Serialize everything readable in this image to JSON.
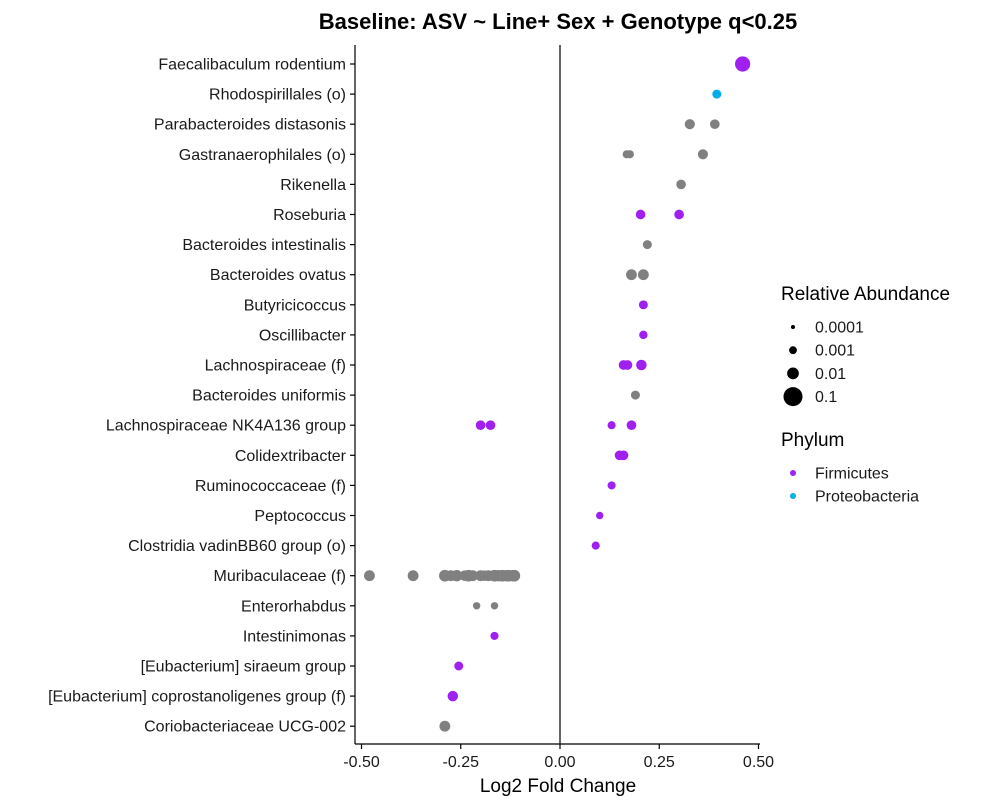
{
  "chart_data": {
    "type": "scatter",
    "title": "Baseline: ASV ~ Line+ Sex + Genotype q<0.25",
    "xlabel": "Log2 Fold Change",
    "ylabel": "",
    "xlim": [
      -0.52,
      0.52
    ],
    "xticks": [
      -0.5,
      -0.25,
      0.0,
      0.25,
      0.5
    ],
    "xtick_labels": [
      "-0.50",
      "-0.25",
      "0.00",
      "0.25",
      "0.50"
    ],
    "reference_line_x": 0,
    "categories": [
      "Faecalibaculum rodentium",
      "Rhodospirillales (o)",
      "Parabacteroides distasonis",
      "Gastranaerophilales (o)",
      "Rikenella",
      "Roseburia",
      "Bacteroides intestinalis",
      "Bacteroides ovatus",
      "Butyricicoccus",
      "Oscillibacter",
      "Lachnospiraceae (f)",
      "Bacteroides uniformis",
      "Lachnospiraceae NK4A136 group",
      "Colidextribacter",
      "Ruminococcaceae (f)",
      "Peptococcus",
      "Clostridia vadinBB60 group (o)",
      "Muribaculaceae (f)",
      "Enterorhabdus",
      "Intestinimonas",
      "[Eubacterium] siraeum group",
      "[Eubacterium] coprostanoligenes group (f)",
      "Coriobacteriaceae UCG-002"
    ],
    "colors": {
      "Firmicutes": "#a020f0",
      "Proteobacteria": "#00aee8",
      "Other": "#808080"
    },
    "points": [
      {
        "taxon": "Faecalibaculum rodentium",
        "x": 0.46,
        "abundance": 0.08,
        "phylum": "Firmicutes"
      },
      {
        "taxon": "Rhodospirillales (o)",
        "x": 0.395,
        "abundance": 0.002,
        "phylum": "Proteobacteria"
      },
      {
        "taxon": "Parabacteroides distasonis",
        "x": 0.327,
        "abundance": 0.004,
        "phylum": "Other"
      },
      {
        "taxon": "Parabacteroides distasonis",
        "x": 0.39,
        "abundance": 0.003,
        "phylum": "Other"
      },
      {
        "taxon": "Gastranaerophilales (o)",
        "x": 0.168,
        "abundance": 0.0012,
        "phylum": "Other"
      },
      {
        "taxon": "Gastranaerophilales (o)",
        "x": 0.176,
        "abundance": 0.0012,
        "phylum": "Other"
      },
      {
        "taxon": "Gastranaerophilales (o)",
        "x": 0.36,
        "abundance": 0.004,
        "phylum": "Other"
      },
      {
        "taxon": "Rikenella",
        "x": 0.305,
        "abundance": 0.003,
        "phylum": "Other"
      },
      {
        "taxon": "Roseburia",
        "x": 0.203,
        "abundance": 0.003,
        "phylum": "Firmicutes"
      },
      {
        "taxon": "Roseburia",
        "x": 0.3,
        "abundance": 0.003,
        "phylum": "Firmicutes"
      },
      {
        "taxon": "Bacteroides intestinalis",
        "x": 0.22,
        "abundance": 0.002,
        "phylum": "Other"
      },
      {
        "taxon": "Bacteroides ovatus",
        "x": 0.18,
        "abundance": 0.006,
        "phylum": "Other"
      },
      {
        "taxon": "Bacteroides ovatus",
        "x": 0.21,
        "abundance": 0.006,
        "phylum": "Other"
      },
      {
        "taxon": "Butyricicoccus",
        "x": 0.21,
        "abundance": 0.002,
        "phylum": "Firmicutes"
      },
      {
        "taxon": "Oscillibacter",
        "x": 0.21,
        "abundance": 0.0015,
        "phylum": "Firmicutes"
      },
      {
        "taxon": "Lachnospiraceae (f)",
        "x": 0.16,
        "abundance": 0.003,
        "phylum": "Firmicutes"
      },
      {
        "taxon": "Lachnospiraceae (f)",
        "x": 0.17,
        "abundance": 0.003,
        "phylum": "Firmicutes"
      },
      {
        "taxon": "Lachnospiraceae (f)",
        "x": 0.205,
        "abundance": 0.005,
        "phylum": "Firmicutes"
      },
      {
        "taxon": "Bacteroides uniformis",
        "x": 0.19,
        "abundance": 0.002,
        "phylum": "Other"
      },
      {
        "taxon": "Lachnospiraceae NK4A136 group",
        "x": -0.2,
        "abundance": 0.003,
        "phylum": "Firmicutes"
      },
      {
        "taxon": "Lachnospiraceae NK4A136 group",
        "x": -0.175,
        "abundance": 0.003,
        "phylum": "Firmicutes"
      },
      {
        "taxon": "Lachnospiraceae NK4A136 group",
        "x": 0.13,
        "abundance": 0.0012,
        "phylum": "Firmicutes"
      },
      {
        "taxon": "Lachnospiraceae NK4A136 group",
        "x": 0.18,
        "abundance": 0.003,
        "phylum": "Firmicutes"
      },
      {
        "taxon": "Colidextribacter",
        "x": 0.15,
        "abundance": 0.003,
        "phylum": "Firmicutes"
      },
      {
        "taxon": "Colidextribacter",
        "x": 0.16,
        "abundance": 0.003,
        "phylum": "Firmicutes"
      },
      {
        "taxon": "Ruminococcaceae (f)",
        "x": 0.13,
        "abundance": 0.0012,
        "phylum": "Firmicutes"
      },
      {
        "taxon": "Peptococcus",
        "x": 0.1,
        "abundance": 0.0008,
        "phylum": "Firmicutes"
      },
      {
        "taxon": "Clostridia vadinBB60 group (o)",
        "x": 0.09,
        "abundance": 0.0012,
        "phylum": "Firmicutes"
      },
      {
        "taxon": "Muribaculaceae (f)",
        "x": -0.48,
        "abundance": 0.006,
        "phylum": "Other"
      },
      {
        "taxon": "Muribaculaceae (f)",
        "x": -0.37,
        "abundance": 0.006,
        "phylum": "Other"
      },
      {
        "taxon": "Muribaculaceae (f)",
        "x": -0.29,
        "abundance": 0.01,
        "phylum": "Other"
      },
      {
        "taxon": "Muribaculaceae (f)",
        "x": -0.275,
        "abundance": 0.006,
        "phylum": "Other"
      },
      {
        "taxon": "Muribaculaceae (f)",
        "x": -0.26,
        "abundance": 0.008,
        "phylum": "Other"
      },
      {
        "taxon": "Muribaculaceae (f)",
        "x": -0.24,
        "abundance": 0.005,
        "phylum": "Other"
      },
      {
        "taxon": "Muribaculaceae (f)",
        "x": -0.23,
        "abundance": 0.01,
        "phylum": "Other"
      },
      {
        "taxon": "Muribaculaceae (f)",
        "x": -0.22,
        "abundance": 0.006,
        "phylum": "Other"
      },
      {
        "taxon": "Muribaculaceae (f)",
        "x": -0.2,
        "abundance": 0.006,
        "phylum": "Other"
      },
      {
        "taxon": "Muribaculaceae (f)",
        "x": -0.19,
        "abundance": 0.005,
        "phylum": "Other"
      },
      {
        "taxon": "Muribaculaceae (f)",
        "x": -0.18,
        "abundance": 0.006,
        "phylum": "Other"
      },
      {
        "taxon": "Muribaculaceae (f)",
        "x": -0.165,
        "abundance": 0.01,
        "phylum": "Other"
      },
      {
        "taxon": "Muribaculaceae (f)",
        "x": -0.155,
        "abundance": 0.008,
        "phylum": "Other"
      },
      {
        "taxon": "Muribaculaceae (f)",
        "x": -0.145,
        "abundance": 0.01,
        "phylum": "Other"
      },
      {
        "taxon": "Muribaculaceae (f)",
        "x": -0.135,
        "abundance": 0.008,
        "phylum": "Other"
      },
      {
        "taxon": "Muribaculaceae (f)",
        "x": -0.13,
        "abundance": 0.01,
        "phylum": "Other"
      },
      {
        "taxon": "Muribaculaceae (f)",
        "x": -0.12,
        "abundance": 0.008,
        "phylum": "Other"
      },
      {
        "taxon": "Muribaculaceae (f)",
        "x": -0.115,
        "abundance": 0.01,
        "phylum": "Other"
      },
      {
        "taxon": "Enterorhabdus",
        "x": -0.21,
        "abundance": 0.0008,
        "phylum": "Other"
      },
      {
        "taxon": "Enterorhabdus",
        "x": -0.165,
        "abundance": 0.0008,
        "phylum": "Other"
      },
      {
        "taxon": "Intestinimonas",
        "x": -0.165,
        "abundance": 0.0012,
        "phylum": "Firmicutes"
      },
      {
        "taxon": "[Eubacterium] siraeum group",
        "x": -0.255,
        "abundance": 0.002,
        "phylum": "Firmicutes"
      },
      {
        "taxon": "[Eubacterium] coprostanoligenes group (f)",
        "x": -0.27,
        "abundance": 0.005,
        "phylum": "Firmicutes"
      },
      {
        "taxon": "Coriobacteriaceae UCG-002",
        "x": -0.29,
        "abundance": 0.006,
        "phylum": "Other"
      }
    ],
    "legend": {
      "size_title": "Relative Abundance",
      "size_entries": [
        {
          "label": "0.0001",
          "value": 0.0001
        },
        {
          "label": "0.001",
          "value": 0.001
        },
        {
          "label": "0.01",
          "value": 0.01
        },
        {
          "label": "0.1",
          "value": 0.1
        }
      ],
      "color_title": "Phylum",
      "color_entries": [
        {
          "label": "Firmicutes",
          "color": "#a020f0"
        },
        {
          "label": "Proteobacteria",
          "color": "#00aee8"
        }
      ],
      "placement": "right"
    }
  }
}
